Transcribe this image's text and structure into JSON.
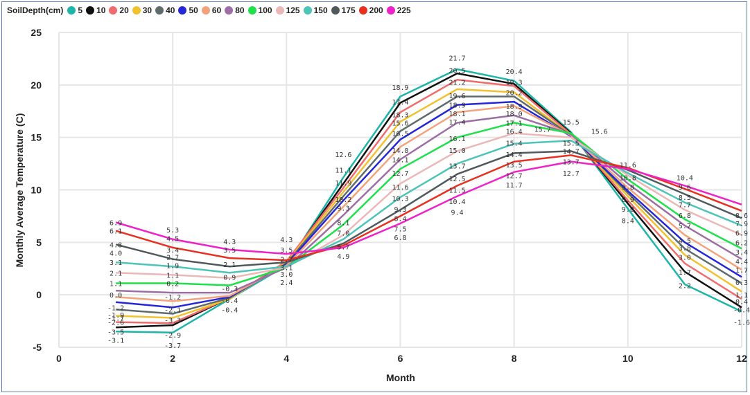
{
  "chart_data": {
    "type": "line",
    "title": "",
    "xlabel": "Month",
    "ylabel": "Monthly Average Temperature (C)",
    "legend_title": "SoilDepth(cm)",
    "legend_position": "top-left",
    "xlim": [
      0,
      12
    ],
    "ylim": [
      -5,
      25
    ],
    "xticks": [
      "0",
      "2",
      "4",
      "6",
      "8",
      "10",
      "12"
    ],
    "yticks": [
      "-5",
      "0",
      "5",
      "10",
      "15",
      "20",
      "25"
    ],
    "grid": true,
    "x": [
      1,
      2,
      3,
      4,
      5,
      6,
      7,
      8,
      9,
      10,
      11,
      12
    ],
    "series": [
      {
        "name": "5",
        "color": "#1cb5a8",
        "values": [
          -3.5,
          -3.6,
          -0.4,
          2.8,
          11.2,
          18.9,
          21.5,
          20.4,
          15.5,
          8.2,
          1.0,
          -1.6
        ]
      },
      {
        "name": "10",
        "color": "#111111",
        "values": [
          -3.1,
          -2.9,
          -0.3,
          3.0,
          10.6,
          18.3,
          21.1,
          20.1,
          15.4,
          8.7,
          2.2,
          -1.2
        ]
      },
      {
        "name": "20",
        "color": "#f06b6b",
        "values": [
          -2.6,
          -2.7,
          -0.3,
          3.2,
          10.2,
          17.4,
          20.5,
          19.9,
          15.3,
          9.0,
          3.0,
          -0.4
        ]
      },
      {
        "name": "30",
        "color": "#f2c12e",
        "values": [
          -2.0,
          -2.2,
          -0.4,
          3.1,
          9.8,
          16.5,
          19.6,
          19.3,
          15.2,
          9.4,
          3.8,
          0.3
        ]
      },
      {
        "name": "40",
        "color": "#5f6b6d",
        "values": [
          -1.4,
          -1.8,
          -0.3,
          3.0,
          9.4,
          15.6,
          18.9,
          18.9,
          15.2,
          9.7,
          4.4,
          1.1
        ]
      },
      {
        "name": "50",
        "color": "#2626d9",
        "values": [
          -0.7,
          -1.2,
          -0.2,
          2.9,
          9.0,
          14.8,
          18.1,
          18.4,
          15.1,
          9.9,
          5.0,
          1.7
        ]
      },
      {
        "name": "60",
        "color": "#f4a27b",
        "values": [
          -0.2,
          -0.6,
          -0.1,
          2.8,
          8.4,
          14.1,
          17.4,
          18.0,
          15.2,
          10.2,
          5.7,
          2.4
        ]
      },
      {
        "name": "80",
        "color": "#9c6ea4",
        "values": [
          0.4,
          0.2,
          0.2,
          2.6,
          7.6,
          12.9,
          16.4,
          17.1,
          15.3,
          10.6,
          6.6,
          3.4
        ]
      },
      {
        "name": "100",
        "color": "#1ee04a",
        "values": [
          1.1,
          1.1,
          0.9,
          2.6,
          6.7,
          12.0,
          15.0,
          16.4,
          15.4,
          11.0,
          7.2,
          4.4
        ]
      },
      {
        "name": "125",
        "color": "#ebb8b8",
        "values": [
          2.1,
          1.9,
          1.6,
          2.6,
          5.7,
          10.6,
          13.7,
          15.4,
          15.0,
          11.4,
          8.1,
          5.7
        ]
      },
      {
        "name": "150",
        "color": "#4dc4b8",
        "values": [
          3.1,
          2.7,
          2.1,
          2.7,
          5.3,
          9.3,
          12.5,
          14.4,
          14.7,
          11.6,
          8.8,
          6.6
        ]
      },
      {
        "name": "175",
        "color": "#505a5c",
        "values": [
          4.8,
          3.4,
          2.7,
          3.1,
          4.9,
          8.1,
          11.5,
          13.5,
          13.7,
          11.9,
          9.6,
          7.3
        ]
      },
      {
        "name": "200",
        "color": "#e83020",
        "values": [
          6.1,
          4.5,
          3.5,
          3.3,
          4.7,
          7.5,
          10.4,
          12.7,
          13.3,
          12.1,
          10.1,
          8.0
        ]
      },
      {
        "name": "225",
        "color": "#ee22c8",
        "values": [
          6.9,
          5.3,
          4.3,
          3.9,
          4.5,
          6.8,
          9.4,
          11.7,
          12.7,
          12.0,
          10.4,
          8.6
        ]
      }
    ],
    "data_labels": [
      {
        "x": 1,
        "text": "6.9",
        "v": 6.9
      },
      {
        "x": 1,
        "text": "6.1",
        "v": 6.1
      },
      {
        "x": 1,
        "text": "4.8",
        "v": 4.8
      },
      {
        "x": 1,
        "text": "4.0",
        "v": 4.0
      },
      {
        "x": 1,
        "text": "3.1",
        "v": 3.1
      },
      {
        "x": 1,
        "text": "2.1",
        "v": 2.1
      },
      {
        "x": 1,
        "text": "1.1",
        "v": 1.1
      },
      {
        "x": 1,
        "text": "0.0",
        "v": 0.0
      },
      {
        "x": 1,
        "text": "-1.2",
        "v": -1.2
      },
      {
        "x": 1,
        "text": "-1.9",
        "v": -1.9
      },
      {
        "x": 1,
        "text": "-1.7",
        "v": -2.2
      },
      {
        "x": 1,
        "text": "-2.6",
        "v": -2.6
      },
      {
        "x": 1,
        "text": "-3.5",
        "v": -3.5
      },
      {
        "x": 1,
        "text": "-3.1",
        "v": -4.3
      },
      {
        "x": 2,
        "text": "5.3",
        "v": 6.2
      },
      {
        "x": 2,
        "text": "4.5",
        "v": 5.4
      },
      {
        "x": 2,
        "text": "3.4",
        "v": 4.3
      },
      {
        "x": 2,
        "text": "2.7",
        "v": 3.6
      },
      {
        "x": 2,
        "text": "1.9",
        "v": 2.8
      },
      {
        "x": 2,
        "text": "1.1",
        "v": 1.9
      },
      {
        "x": 2,
        "text": "0.2",
        "v": 1.1
      },
      {
        "x": 2,
        "text": "-1.2",
        "v": -0.2
      },
      {
        "x": 2,
        "text": "-2.1",
        "v": -1.4
      },
      {
        "x": 2,
        "text": "-3.3",
        "v": -2.4
      },
      {
        "x": 2,
        "text": "-2.9",
        "v": -3.8
      },
      {
        "x": 2,
        "text": "-3.7",
        "v": -4.8
      },
      {
        "x": 3,
        "text": "4.3",
        "v": 5.1
      },
      {
        "x": 3,
        "text": "3.5",
        "v": 4.3
      },
      {
        "x": 3,
        "text": "2.1",
        "v": 2.9
      },
      {
        "x": 3,
        "text": "0.9",
        "v": 1.7
      },
      {
        "x": 3,
        "text": "-0.3",
        "v": 0.6
      },
      {
        "x": 3,
        "text": "-0.4",
        "v": -0.5
      },
      {
        "x": 3,
        "text": "-0.4",
        "v": -1.4
      },
      {
        "x": 4,
        "text": "4.3",
        "v": 5.3
      },
      {
        "x": 4,
        "text": "3.5",
        "v": 4.3
      },
      {
        "x": 4,
        "text": "2.7",
        "v": 3.4
      },
      {
        "x": 4,
        "text": "3.1",
        "v": 2.6
      },
      {
        "x": 4,
        "text": "3.0",
        "v": 2.0
      },
      {
        "x": 4,
        "text": "2.4",
        "v": 1.2
      },
      {
        "x": 5,
        "text": "12.6",
        "v": 13.4
      },
      {
        "x": 5,
        "text": "11.1",
        "v": 11.9
      },
      {
        "x": 5,
        "text": "11.9",
        "v": 10.7
      },
      {
        "x": 5,
        "text": "10.2",
        "v": 9.1
      },
      {
        "x": 5,
        "text": "9.3",
        "v": 8.3
      },
      {
        "x": 5,
        "text": "8.1",
        "v": 6.9
      },
      {
        "x": 5,
        "text": "7.0",
        "v": 5.9
      },
      {
        "x": 5,
        "text": "5.7",
        "v": 4.6
      },
      {
        "x": 5,
        "text": "4.9",
        "v": 3.7
      },
      {
        "x": 6,
        "text": "18.9",
        "v": 19.8
      },
      {
        "x": 6,
        "text": "17.4",
        "v": 18.4
      },
      {
        "x": 6,
        "text": "18.3",
        "v": 17.2
      },
      {
        "x": 6,
        "text": "15.6",
        "v": 16.4
      },
      {
        "x": 6,
        "text": "16.5",
        "v": 15.4
      },
      {
        "x": 6,
        "text": "14.8",
        "v": 13.8
      },
      {
        "x": 6,
        "text": "14.1",
        "v": 12.9
      },
      {
        "x": 6,
        "text": "12.7",
        "v": 11.6
      },
      {
        "x": 6,
        "text": "11.6",
        "v": 10.3
      },
      {
        "x": 6,
        "text": "10.3",
        "v": 9.2
      },
      {
        "x": 6,
        "text": "9.3",
        "v": 8.2
      },
      {
        "x": 6,
        "text": "8.4",
        "v": 7.3
      },
      {
        "x": 6,
        "text": "7.5",
        "v": 6.3
      },
      {
        "x": 6,
        "text": "6.8",
        "v": 5.5
      },
      {
        "x": 7,
        "text": "21.7",
        "v": 22.6
      },
      {
        "x": 7,
        "text": "20.5",
        "v": 21.4
      },
      {
        "x": 7,
        "text": "21.2",
        "v": 20.3
      },
      {
        "x": 7,
        "text": "19.6",
        "v": 19.0
      },
      {
        "x": 7,
        "text": "18.9",
        "v": 18.1
      },
      {
        "x": 7,
        "text": "18.1",
        "v": 17.3
      },
      {
        "x": 7,
        "text": "17.4",
        "v": 16.5
      },
      {
        "x": 7,
        "text": "16.1",
        "v": 14.9
      },
      {
        "x": 7,
        "text": "15.0",
        "v": 13.8
      },
      {
        "x": 7,
        "text": "13.7",
        "v": 12.3
      },
      {
        "x": 7,
        "text": "12.5",
        "v": 11.1
      },
      {
        "x": 7,
        "text": "11.5",
        "v": 10.0
      },
      {
        "x": 7,
        "text": "10.4",
        "v": 8.9
      },
      {
        "x": 7,
        "text": "9.4",
        "v": 7.9
      },
      {
        "x": 8,
        "text": "20.4",
        "v": 21.3
      },
      {
        "x": 8,
        "text": "19.3",
        "v": 20.3
      },
      {
        "x": 8,
        "text": "20.2",
        "v": 19.3
      },
      {
        "x": 8,
        "text": "18.9",
        "v": 18.0
      },
      {
        "x": 8,
        "text": "18.0",
        "v": 17.3
      },
      {
        "x": 8,
        "text": "17.1",
        "v": 16.4
      },
      {
        "x": 8,
        "text": "16.4",
        "v": 15.6
      },
      {
        "x": 8,
        "text": "15.4",
        "v": 14.5
      },
      {
        "x": 8,
        "text": "14.4",
        "v": 13.4
      },
      {
        "x": 8,
        "text": "13.5",
        "v": 12.4
      },
      {
        "x": 8,
        "text": "12.7",
        "v": 11.4
      },
      {
        "x": 8,
        "text": "11.7",
        "v": 10.5
      },
      {
        "x": 8.5,
        "text": "15.7",
        "v": 15.8
      },
      {
        "x": 9,
        "text": "15.5",
        "v": 16.5
      },
      {
        "x": 9,
        "text": "15.5",
        "v": 14.5
      },
      {
        "x": 9,
        "text": "14.7",
        "v": 13.7
      },
      {
        "x": 9,
        "text": "13.7",
        "v": 12.7
      },
      {
        "x": 9,
        "text": "12.7",
        "v": 11.6
      },
      {
        "x": 9.5,
        "text": "15.6",
        "v": 15.6
      },
      {
        "x": 10,
        "text": "11.6",
        "v": 12.4
      },
      {
        "x": 10,
        "text": "10.8",
        "v": 11.2
      },
      {
        "x": 10,
        "text": "9.8",
        "v": 10.3
      },
      {
        "x": 10,
        "text": "8.9",
        "v": 9.1
      },
      {
        "x": 10,
        "text": "9.0",
        "v": 8.2
      },
      {
        "x": 10,
        "text": "8.4",
        "v": 7.1
      },
      {
        "x": 11,
        "text": "10.4",
        "v": 11.2
      },
      {
        "x": 11,
        "text": "9.6",
        "v": 10.3
      },
      {
        "x": 11,
        "text": "8.5",
        "v": 9.3
      },
      {
        "x": 11,
        "text": "7.7",
        "v": 8.6
      },
      {
        "x": 11,
        "text": "6.8",
        "v": 7.6
      },
      {
        "x": 11,
        "text": "5.7",
        "v": 6.6
      },
      {
        "x": 11,
        "text": "4.5",
        "v": 5.2
      },
      {
        "x": 11,
        "text": "3.8",
        "v": 4.5
      },
      {
        "x": 11,
        "text": "3.0",
        "v": 3.6
      },
      {
        "x": 11,
        "text": "1.7",
        "v": 2.2
      },
      {
        "x": 11,
        "text": "2.2",
        "v": 0.9
      },
      {
        "x": 12,
        "text": "8.6",
        "v": 7.6
      },
      {
        "x": 12,
        "text": "7.9",
        "v": 6.8
      },
      {
        "x": 12,
        "text": "6.9",
        "v": 5.9
      },
      {
        "x": 12,
        "text": "6.2",
        "v": 5.0
      },
      {
        "x": 12,
        "text": "3.4",
        "v": 4.1
      },
      {
        "x": 12,
        "text": "4.4",
        "v": 3.2
      },
      {
        "x": 12,
        "text": "1.7",
        "v": 2.4
      },
      {
        "x": 12,
        "text": "0.3",
        "v": 1.2
      },
      {
        "x": 12,
        "text": "1.1",
        "v": 0.0
      },
      {
        "x": 12,
        "text": "0.4",
        "v": -0.6
      },
      {
        "x": 12,
        "text": "-0.4",
        "v": -1.4
      },
      {
        "x": 12,
        "text": "-1.6",
        "v": -2.6
      }
    ]
  }
}
